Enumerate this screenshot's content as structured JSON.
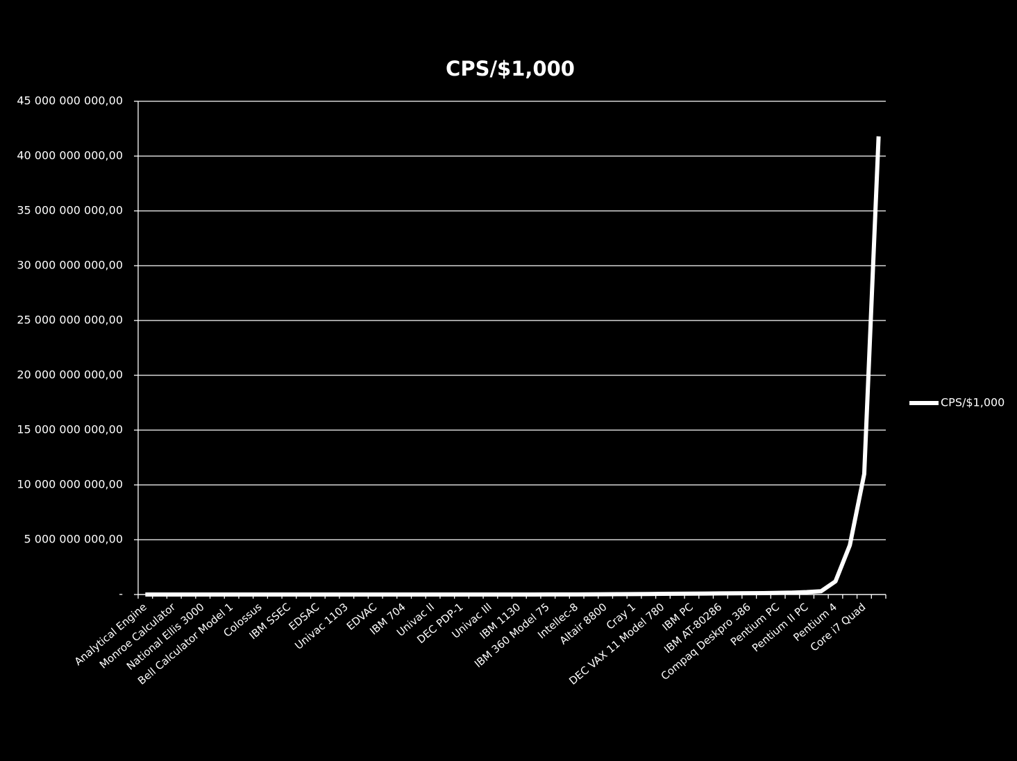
{
  "chart_data": {
    "type": "line",
    "title": "CPS/$1,000",
    "categories": [
      "Analytical Engine",
      null,
      "Monroe Calculator",
      null,
      "National Ellis 3000",
      null,
      "Bell Calculator Model 1",
      null,
      "Colossus",
      null,
      "IBM SSEC",
      null,
      "EDSAC",
      null,
      "Univac 1103",
      null,
      "EDVAC",
      null,
      "IBM 704",
      null,
      "Univac II",
      null,
      "DEC PDP-1",
      null,
      "Univac III",
      null,
      "IBM 1130",
      null,
      "IBM 360 Model 75",
      null,
      "Intellec-8",
      null,
      "Altair 8800",
      null,
      "Cray 1",
      null,
      "DEC VAX 11 Model 780",
      null,
      "IBM PC",
      null,
      "IBM AT-80286",
      null,
      "Compaq Deskpro 386",
      null,
      "Pentium PC",
      null,
      "Pentium II PC",
      null,
      "Pentium 4",
      null,
      "Core i7 Quad",
      null
    ],
    "series": [
      {
        "name": "CPS/$1,000",
        "color": "#ffffff",
        "values": [
          1e-05,
          2e-05,
          0.0001,
          0.0002,
          0.001,
          0.002,
          0.005,
          0.01,
          0.02,
          0.05,
          0.1,
          0.2,
          0.5,
          1,
          3,
          10,
          30,
          100,
          300,
          1000,
          3000,
          10000,
          30000,
          100000,
          300000,
          1000000,
          2000000,
          3000000,
          5000000,
          8000000,
          10000000,
          15000000,
          20000000,
          30000000,
          40000000,
          50000000,
          60000000,
          70000000,
          80000000,
          90000000,
          100000000,
          110000000,
          120000000,
          130000000,
          150000000,
          170000000,
          220000000,
          300000000,
          1200000000,
          4500000000,
          11000000000,
          41800000000
        ]
      }
    ],
    "ylim": [
      0,
      45000000000
    ],
    "yticks": [
      {
        "value": 0,
        "label": "-"
      },
      {
        "value": 5000000000,
        "label": "5 000 000 000,00"
      },
      {
        "value": 10000000000,
        "label": "10 000 000 000,00"
      },
      {
        "value": 15000000000,
        "label": "15 000 000 000,00"
      },
      {
        "value": 20000000000,
        "label": "20 000 000 000,00"
      },
      {
        "value": 25000000000,
        "label": "25 000 000 000,00"
      },
      {
        "value": 30000000000,
        "label": "30 000 000 000,00"
      },
      {
        "value": 35000000000,
        "label": "35 000 000 000,00"
      },
      {
        "value": 40000000000,
        "label": "40 000 000 000,00"
      },
      {
        "value": 45000000000,
        "label": "45 000 000 000,00"
      }
    ],
    "grid": true,
    "legend": "right"
  }
}
